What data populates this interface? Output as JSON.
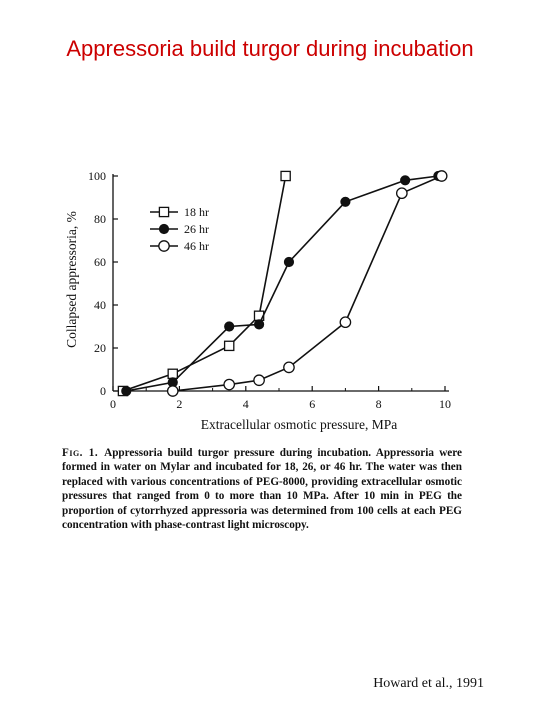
{
  "slide": {
    "title": "Appressoria build turgor during incubation",
    "credit": "Howard et al., 1991"
  },
  "figure": {
    "label": "Fig. 1.",
    "caption": "Appressoria build turgor pressure during incubation. Appressoria were formed in water on Mylar and incubated for 18, 26, or 46 hr. The water was then replaced with various concentrations of PEG-8000, providing extracellular osmotic pressures that ranged from 0 to more than 10 MPa. After 10 min in PEG the proportion of cytorrhyzed appressoria was determined from 100 cells at each PEG concentration with phase-contrast light microscopy."
  },
  "chart_data": {
    "type": "line",
    "xlabel": "Extracellular osmotic pressure, MPa",
    "ylabel": "Collapsed appressoria, %",
    "xlim": [
      0,
      10
    ],
    "ylim": [
      0,
      100
    ],
    "xticks": [
      0,
      2,
      4,
      6,
      8,
      10
    ],
    "yticks": [
      0,
      20,
      40,
      60,
      80,
      100
    ],
    "legend_position": "upper-left",
    "series": [
      {
        "name": "18 hr",
        "marker": "open-square",
        "x": [
          0.3,
          1.8,
          3.5,
          4.4,
          5.2
        ],
        "y": [
          0,
          8,
          21,
          35,
          100
        ]
      },
      {
        "name": "26 hr",
        "marker": "filled-circle",
        "x": [
          0.4,
          1.8,
          3.5,
          4.4,
          5.3,
          7.0,
          8.8,
          9.8
        ],
        "y": [
          0,
          4,
          30,
          31,
          60,
          88,
          98,
          100
        ]
      },
      {
        "name": "46 hr",
        "marker": "open-circle",
        "x": [
          1.8,
          3.5,
          4.4,
          5.3,
          7.0,
          8.7,
          9.9
        ],
        "y": [
          0,
          3,
          5,
          11,
          32,
          92,
          100
        ]
      }
    ]
  }
}
